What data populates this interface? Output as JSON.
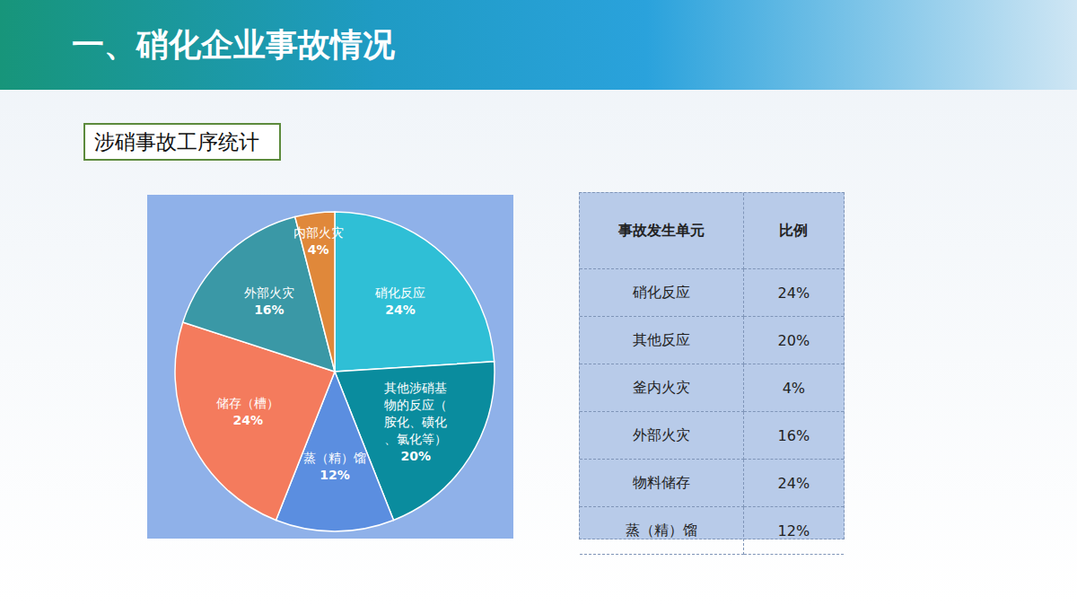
{
  "header": {
    "title": "一、硝化企业事故情况"
  },
  "section_label": "涉硝事故工序统计",
  "chart_data": {
    "type": "pie",
    "categories": [
      "硝化反应",
      "其他涉硝基物的反应（胺化、磺化、氯化等）",
      "蒸（精）馏",
      "储存（槽）",
      "外部火灾",
      "内部火灾"
    ],
    "values": [
      24,
      20,
      12,
      24,
      16,
      4
    ],
    "value_labels": [
      "24%",
      "20%",
      "12%",
      "24%",
      "16%",
      "4%"
    ],
    "colors": [
      "#2fbfd6",
      "#0a8c9e",
      "#5b8ee0",
      "#f47b5d",
      "#3a98a6",
      "#e0883a"
    ],
    "data_labels": true
  },
  "table": {
    "columns": [
      "事故发生单元",
      "比例"
    ],
    "rows": [
      [
        "硝化反应",
        "24%"
      ],
      [
        "其他反应",
        "20%"
      ],
      [
        "釜内火灾",
        "4%"
      ],
      [
        "外部火灾",
        "16%"
      ],
      [
        "物料储存",
        "24%"
      ],
      [
        "蒸（精）馏",
        "12%"
      ]
    ]
  }
}
